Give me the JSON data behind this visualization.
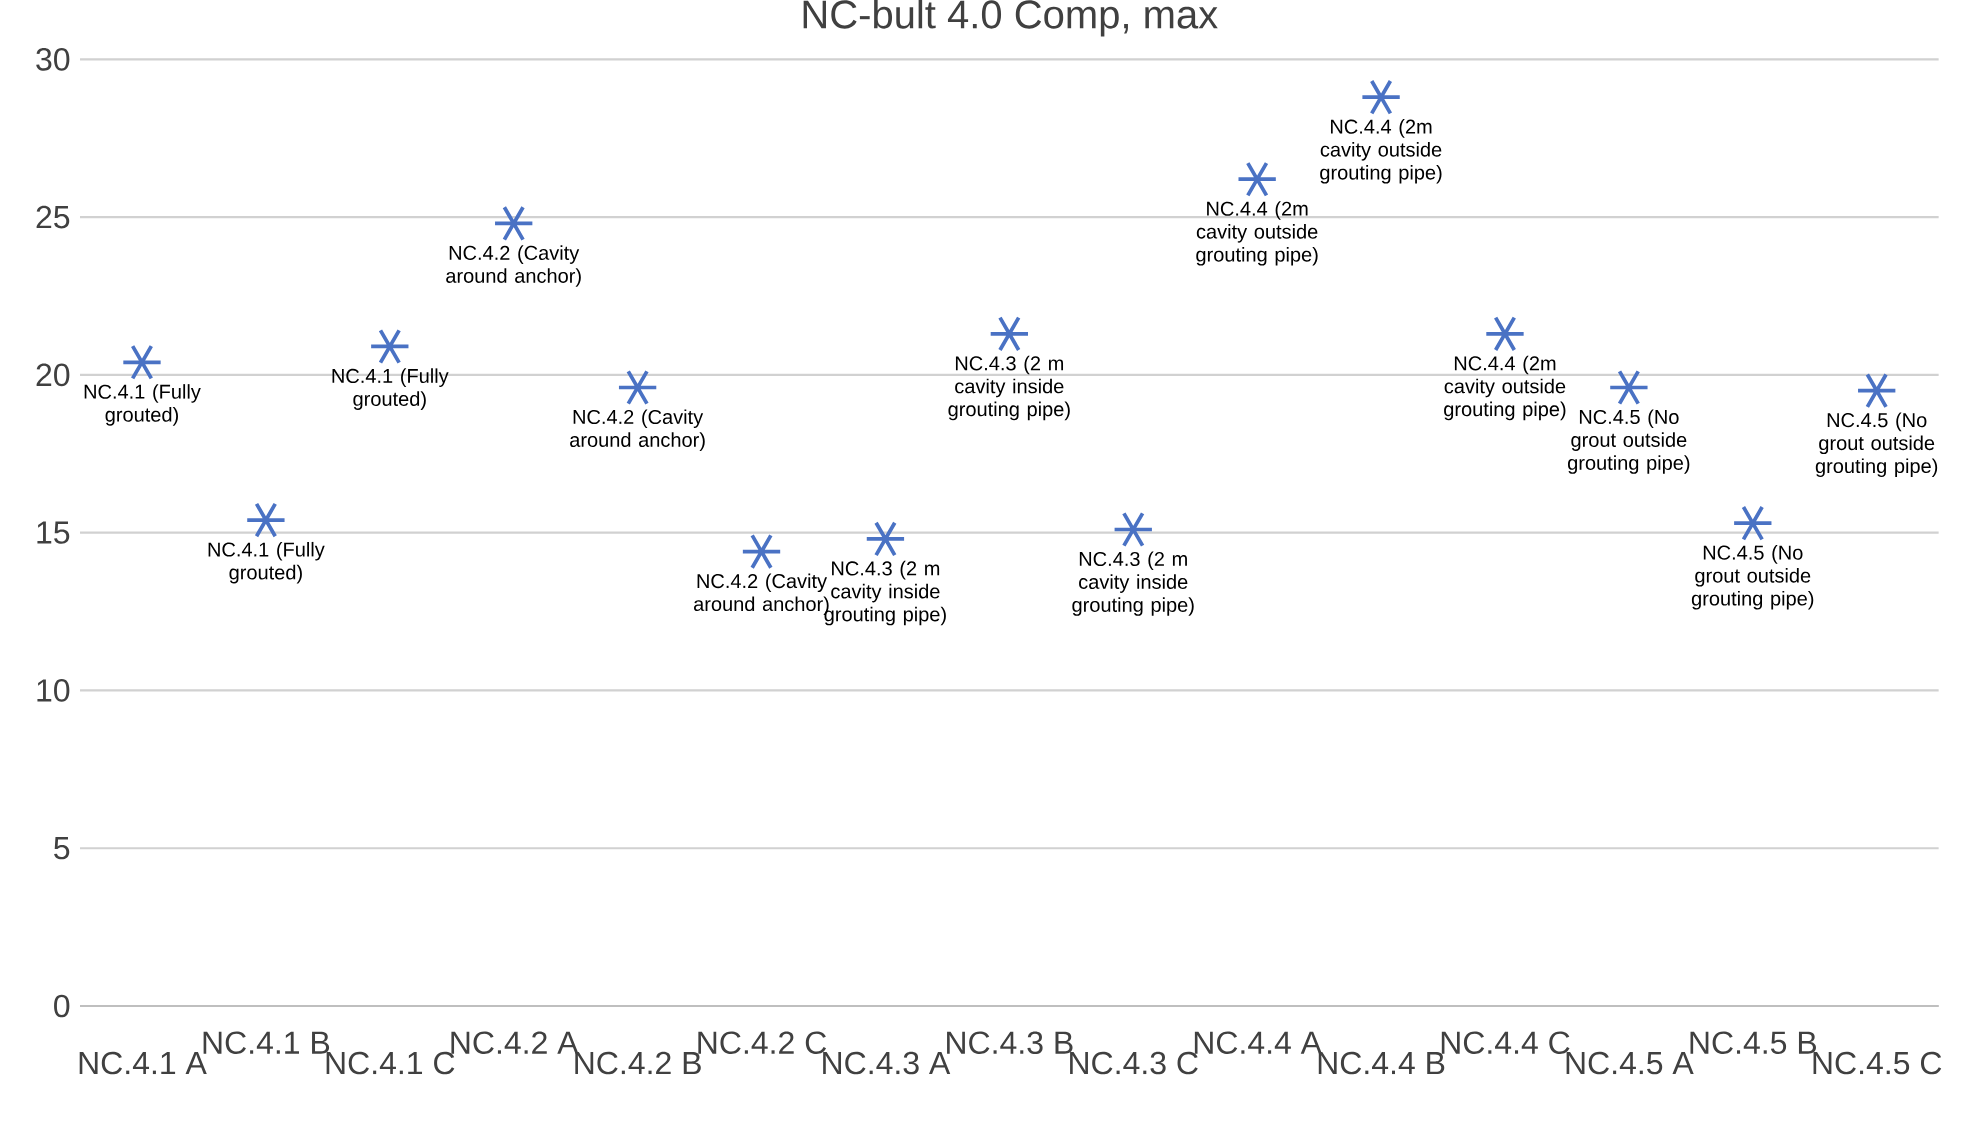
{
  "chart_data": {
    "type": "scatter",
    "title": "NC-bult 4.0 Comp, max",
    "categories": [
      "NC.4.1 A",
      "NC.4.1 B",
      "NC.4.1 C",
      "NC.4.2 A",
      "NC.4.2 B",
      "NC.4.2 C",
      "NC.4.3 A",
      "NC.4.3 B",
      "NC.4.3 C",
      "NC.4.4 A",
      "NC.4.4 B",
      "NC.4.4 C",
      "NC.4.5 A",
      "NC.4.5 B",
      "NC.4.5 C"
    ],
    "values": [
      20.4,
      15.4,
      20.9,
      24.8,
      19.6,
      14.4,
      14.8,
      21.3,
      15.1,
      26.2,
      28.8,
      21.3,
      19.6,
      15.3,
      19.5
    ],
    "color": "#4a72c4",
    "marker": "cross",
    "grid": "y",
    "ylim": [
      0,
      30
    ],
    "yticks": [
      0,
      5,
      10,
      15,
      20,
      25,
      30
    ],
    "annotations": [
      {
        "text": "NC.4.1 (Fully grouted)",
        "x": "NC.4.1 A",
        "y": 20.4
      },
      {
        "text": "NC.4.1 (Fully grouted)",
        "x": "NC.4.1 B",
        "y": 15.4
      },
      {
        "text": "NC.4.1 (Fully grouted)",
        "x": "NC.4.1 C",
        "y": 20.9
      },
      {
        "text": "NC.4.2 (Cavity around anchor)",
        "x": "NC.4.2 A",
        "y": 24.8
      },
      {
        "text": "NC.4.2 (Cavity around anchor)",
        "x": "NC.4.2 B",
        "y": 19.6
      },
      {
        "text": "NC.4.2 (Cavity around anchor)",
        "x": "NC.4.2 C",
        "y": 14.4
      },
      {
        "text": "NC.4.3 (2 m cavity inside grouting pipe)",
        "x": "NC.4.3 A",
        "y": 14.8
      },
      {
        "text": "NC.4.3 (2 m cavity inside grouting pipe)",
        "x": "NC.4.3 B",
        "y": 21.3
      },
      {
        "text": "NC.4.3 (2 m cavity inside grouting pipe)",
        "x": "NC.4.3 C",
        "y": 15.1
      },
      {
        "text": "NC.4.4 (2m cavity outside grouting pipe)",
        "x": "NC.4.4 A",
        "y": 26.2
      },
      {
        "text": "NC.4.4 (2m cavity outside grouting pipe)",
        "x": "NC.4.4 B",
        "y": 28.8
      },
      {
        "text": "NC.4.4 (2m cavity outside grouting pipe)",
        "x": "NC.4.4 C",
        "y": 21.3
      },
      {
        "text": "NC.4.5 (No grout outside grouting pipe)",
        "x": "NC.4.5 A",
        "y": 19.6
      },
      {
        "text": "NC.4.5 (No grout outside grouting pipe)",
        "x": "NC.4.5 B",
        "y": 15.3
      },
      {
        "text": "NC.4.5 (No grout outside grouting pipe)",
        "x": "NC.4.5 C",
        "y": 19.5
      }
    ]
  }
}
